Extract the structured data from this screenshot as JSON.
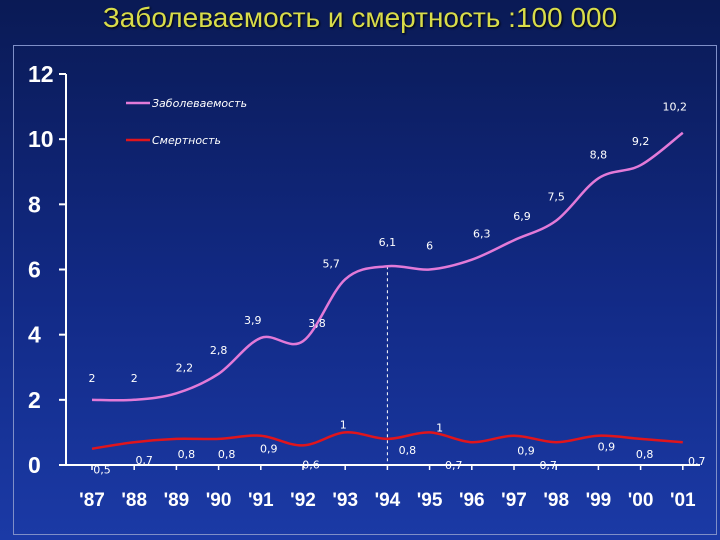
{
  "title": "Заболеваемость и смертность  :100 000",
  "colors": {
    "background": "#122a86",
    "title": "#d8dc4a",
    "incidence_line": "#e27ad8",
    "mortality_line": "#e0151c",
    "axis": "#ffffff",
    "marker_line": "#ffffff"
  },
  "chart_data": {
    "type": "line",
    "title": "",
    "xlabel": "",
    "ylabel": "",
    "categories": [
      "'87",
      "'88",
      "'89",
      "'90",
      "'91",
      "'92",
      "'93",
      "'94",
      "'95",
      "'96",
      "'97",
      "'98",
      "'99",
      "'00",
      "'01"
    ],
    "ylim": [
      0,
      12
    ],
    "yticks": [
      "0",
      "2",
      "4",
      "6",
      "8",
      "10",
      "12"
    ],
    "grid": false,
    "legend_position": "top-left",
    "marker_category": "'94",
    "series": [
      {
        "name": "Заболеваемость",
        "values": [
          2,
          2,
          2.2,
          2.8,
          3.9,
          3.8,
          5.7,
          6.1,
          6,
          6.3,
          6.9,
          7.5,
          8.8,
          9.2,
          10.2
        ],
        "labels": [
          "2",
          "2",
          "2,2",
          "2,8",
          "3,9",
          "3,8",
          "5,7",
          "6,1",
          "6",
          "6,3",
          "6,9",
          "7,5",
          "8,8",
          "9,2",
          "10,2"
        ]
      },
      {
        "name": "Смертность",
        "values": [
          0.5,
          0.7,
          0.8,
          0.8,
          0.9,
          0.6,
          1,
          0.8,
          1,
          0.7,
          0.9,
          0.7,
          0.9,
          0.8,
          0.7
        ],
        "labels": [
          "0,5",
          "0,7",
          "0,8",
          "0,8",
          "0,9",
          "0,6",
          "1",
          "0,8",
          "1",
          "0,7",
          "0,9",
          "0,7",
          "0,9",
          "0,8",
          "0,7"
        ]
      }
    ]
  }
}
